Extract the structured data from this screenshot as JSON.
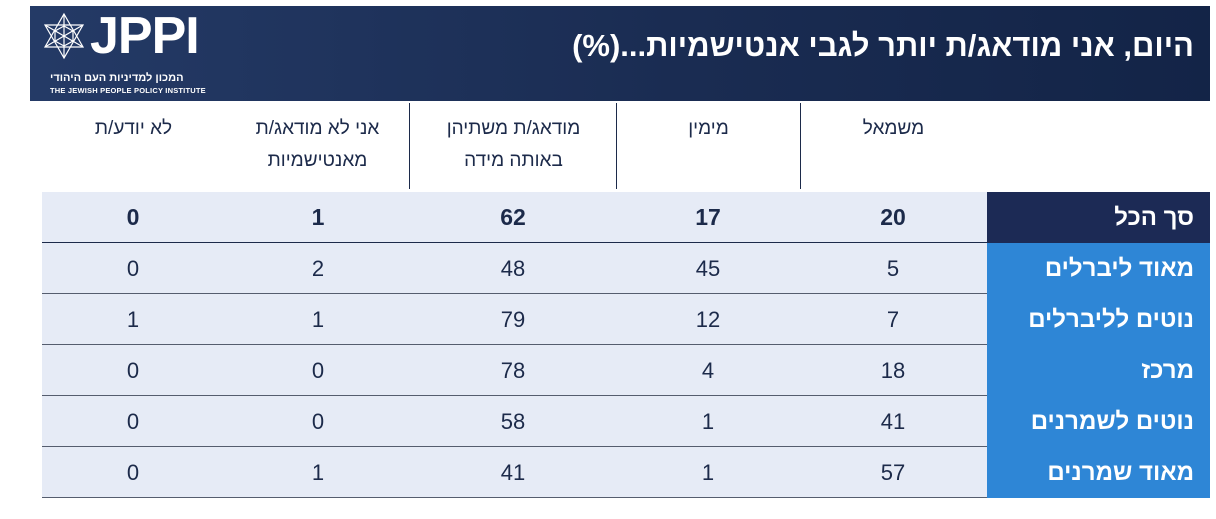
{
  "header": {
    "title": "היום, אני מודאג/ת יותר לגבי אנטישמיות...(%)",
    "logo_text": "JPPI",
    "logo_sub_he": "המכון למדיניות העם היהודי",
    "logo_sub_en": "THE JEWISH PEOPLE POLICY INSTITUTE"
  },
  "colors": {
    "header_bg": "#1a2c52",
    "total_label_bg": "#1c2a55",
    "row_label_bg": "#2e86d6",
    "row_bg": "#e6ebf6",
    "text": "#1c2a4a"
  },
  "chart_data": {
    "type": "table",
    "columns": [
      "משמאל",
      "מימין",
      "מודאג/ת משתיהן באותה מידה",
      "אני לא מודאג/ת מאנטישמיות",
      "לא יודע/ת"
    ],
    "column_lines": {
      "c0": [
        "משמאל"
      ],
      "c1": [
        "מימין"
      ],
      "c2": [
        "מודאג/ת משתיהן",
        "באותה מידה"
      ],
      "c3": [
        "אני לא מודאג/ת",
        "מאנטישמיות"
      ],
      "c4": [
        "לא יודע/ת"
      ]
    },
    "rows": [
      {
        "label": "סך הכל",
        "values": [
          "20",
          "17",
          "62",
          "1",
          "0"
        ]
      },
      {
        "label": "מאוד ליברלים",
        "values": [
          "5",
          "45",
          "48",
          "2",
          "0"
        ]
      },
      {
        "label": "נוטים לליברלים",
        "values": [
          "7",
          "12",
          "79",
          "1",
          "1"
        ]
      },
      {
        "label": "מרכז",
        "values": [
          "18",
          "4",
          "78",
          "0",
          "0"
        ]
      },
      {
        "label": "נוטים לשמרנים",
        "values": [
          "41",
          "1",
          "58",
          "0",
          "0"
        ]
      },
      {
        "label": "מאוד שמרנים",
        "values": [
          "57",
          "1",
          "41",
          "1",
          "0"
        ]
      }
    ]
  }
}
